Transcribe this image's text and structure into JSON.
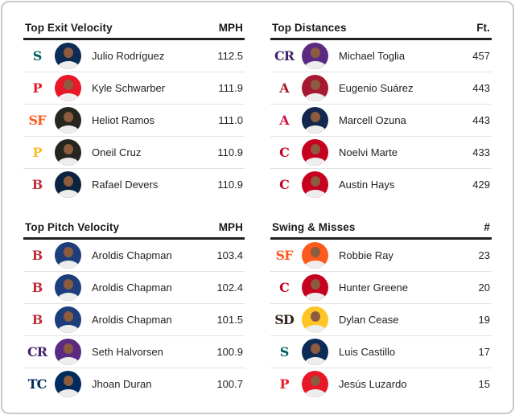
{
  "page": {
    "background": "#ffffff",
    "frame_border_color": "#c9c9c9",
    "header_rule_color": "#1f1f1f",
    "row_divider_color": "#e3e3e3"
  },
  "panels": [
    {
      "title": "Top Exit Velocity",
      "unit": "MPH",
      "rows": [
        {
          "team": "Seattle Mariners",
          "logo": "S",
          "logo_color": "#005C5C",
          "avatar_color": "#0C2C56",
          "player": "Julio Rodríguez",
          "value": "112.5"
        },
        {
          "team": "Philadelphia Phillies",
          "logo": "P",
          "logo_color": "#E81828",
          "avatar_color": "#E81828",
          "player": "Kyle Schwarber",
          "value": "111.9"
        },
        {
          "team": "San Francisco Giants",
          "logo": "SF",
          "logo_color": "#FD5A1E",
          "avatar_color": "#27251F",
          "player": "Heliot Ramos",
          "value": "111.0"
        },
        {
          "team": "Pittsburgh Pirates",
          "logo": "P",
          "logo_color": "#FDB827",
          "avatar_color": "#27251F",
          "player": "Oneil Cruz",
          "value": "110.9"
        },
        {
          "team": "Boston Red Sox",
          "logo": "B",
          "logo_color": "#BD3039",
          "avatar_color": "#0C2340",
          "player": "Rafael Devers",
          "value": "110.9"
        }
      ]
    },
    {
      "title": "Top Distances",
      "unit": "Ft.",
      "rows": [
        {
          "team": "Colorado Rockies",
          "logo": "CR",
          "logo_color": "#46236B",
          "avatar_color": "#5B2B82",
          "player": "Michael Toglia",
          "value": "457"
        },
        {
          "team": "Arizona Diamondbacks",
          "logo": "A",
          "logo_color": "#A71930",
          "avatar_color": "#A71930",
          "player": "Eugenio Suárez",
          "value": "443"
        },
        {
          "team": "Atlanta Braves",
          "logo": "A",
          "logo_color": "#CE1141",
          "avatar_color": "#13274F",
          "player": "Marcell Ozuna",
          "value": "443"
        },
        {
          "team": "Cincinnati Reds",
          "logo": "C",
          "logo_color": "#C6011F",
          "avatar_color": "#C6011F",
          "player": "Noelvi Marte",
          "value": "433"
        },
        {
          "team": "Cincinnati Reds",
          "logo": "C",
          "logo_color": "#C6011F",
          "avatar_color": "#C6011F",
          "player": "Austin Hays",
          "value": "429"
        }
      ]
    },
    {
      "title": "Top Pitch Velocity",
      "unit": "MPH",
      "rows": [
        {
          "team": "Boston Red Sox",
          "logo": "B",
          "logo_color": "#BD3039",
          "avatar_color": "#1D3E7A",
          "player": "Aroldis Chapman",
          "value": "103.4"
        },
        {
          "team": "Boston Red Sox",
          "logo": "B",
          "logo_color": "#BD3039",
          "avatar_color": "#1D3E7A",
          "player": "Aroldis Chapman",
          "value": "102.4"
        },
        {
          "team": "Boston Red Sox",
          "logo": "B",
          "logo_color": "#BD3039",
          "avatar_color": "#1D3E7A",
          "player": "Aroldis Chapman",
          "value": "101.5"
        },
        {
          "team": "Colorado Rockies",
          "logo": "CR",
          "logo_color": "#46236B",
          "avatar_color": "#5B2B82",
          "player": "Seth Halvorsen",
          "value": "100.9"
        },
        {
          "team": "Minnesota Twins",
          "logo": "TC",
          "logo_color": "#002B5C",
          "avatar_color": "#002B5C",
          "player": "Jhoan Duran",
          "value": "100.7"
        }
      ]
    },
    {
      "title": "Swing & Misses",
      "unit": "#",
      "rows": [
        {
          "team": "San Francisco Giants",
          "logo": "SF",
          "logo_color": "#FD5A1E",
          "avatar_color": "#FD5A1E",
          "player": "Robbie Ray",
          "value": "23"
        },
        {
          "team": "Cincinnati Reds",
          "logo": "C",
          "logo_color": "#C6011F",
          "avatar_color": "#C6011F",
          "player": "Hunter Greene",
          "value": "20"
        },
        {
          "team": "San Diego Padres",
          "logo": "SD",
          "logo_color": "#2F241D",
          "avatar_color": "#FFC425",
          "player": "Dylan Cease",
          "value": "19"
        },
        {
          "team": "Seattle Mariners",
          "logo": "S",
          "logo_color": "#005C5C",
          "avatar_color": "#0C2C56",
          "player": "Luis Castillo",
          "value": "17"
        },
        {
          "team": "Philadelphia Phillies",
          "logo": "P",
          "logo_color": "#E81828",
          "avatar_color": "#E81828",
          "player": "Jesús Luzardo",
          "value": "15"
        }
      ]
    }
  ]
}
